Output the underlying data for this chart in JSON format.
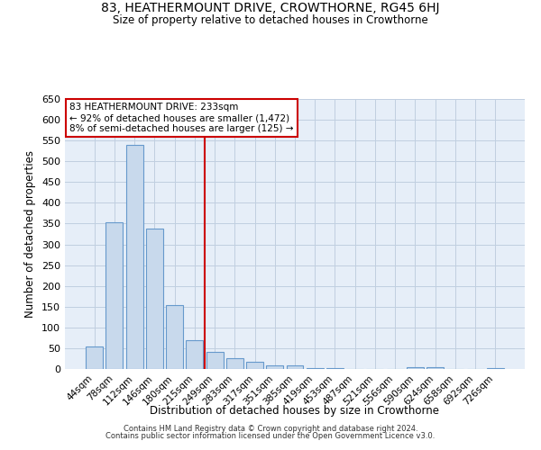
{
  "title": "83, HEATHERMOUNT DRIVE, CROWTHORNE, RG45 6HJ",
  "subtitle": "Size of property relative to detached houses in Crowthorne",
  "xlabel": "Distribution of detached houses by size in Crowthorne",
  "ylabel": "Number of detached properties",
  "bar_color": "#c8d9ec",
  "bar_edge_color": "#6699cc",
  "categories": [
    "44sqm",
    "78sqm",
    "112sqm",
    "146sqm",
    "180sqm",
    "215sqm",
    "249sqm",
    "283sqm",
    "317sqm",
    "351sqm",
    "385sqm",
    "419sqm",
    "453sqm",
    "487sqm",
    "521sqm",
    "556sqm",
    "590sqm",
    "624sqm",
    "658sqm",
    "692sqm",
    "726sqm"
  ],
  "values": [
    55,
    353,
    540,
    337,
    154,
    70,
    42,
    25,
    18,
    8,
    8,
    2,
    2,
    1,
    1,
    0,
    5,
    5,
    0,
    0,
    3
  ],
  "vline_x": 6.0,
  "vline_color": "#cc0000",
  "annotation_text": "83 HEATHERMOUNT DRIVE: 233sqm\n← 92% of detached houses are smaller (1,472)\n8% of semi-detached houses are larger (125) →",
  "annotation_box_color": "#ffffff",
  "annotation_box_edge_color": "#cc0000",
  "ylim": [
    0,
    650
  ],
  "yticks": [
    0,
    50,
    100,
    150,
    200,
    250,
    300,
    350,
    400,
    450,
    500,
    550,
    600,
    650
  ],
  "footer_line1": "Contains HM Land Registry data © Crown copyright and database right 2024.",
  "footer_line2": "Contains public sector information licensed under the Open Government Licence v3.0.",
  "background_color": "#ffffff",
  "grid_color": "#c0cfe0",
  "ax_bg_color": "#e6eef8"
}
